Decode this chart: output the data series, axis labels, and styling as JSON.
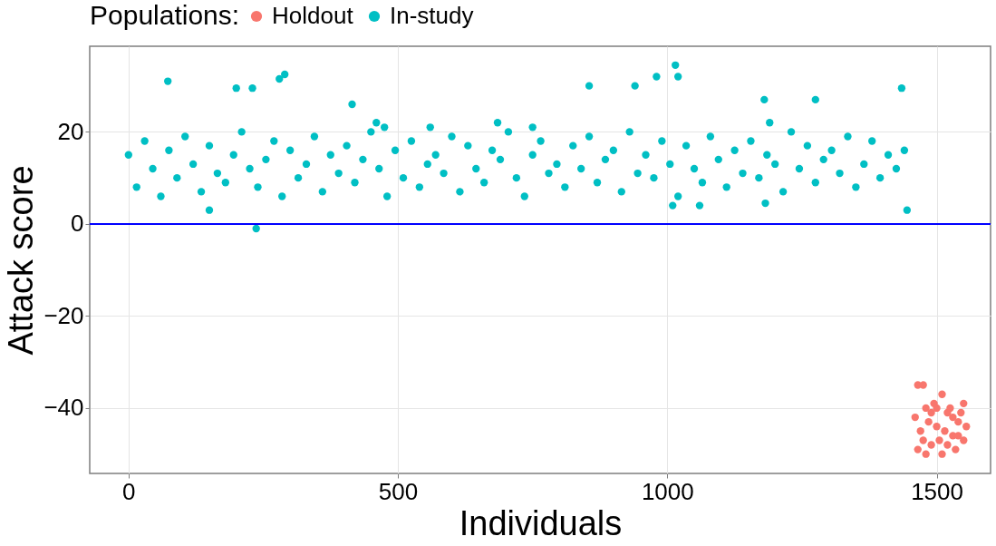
{
  "chart_data": {
    "type": "scatter",
    "xlabel": "Individuals",
    "ylabel": "Attack score",
    "legend_title": "Populations:",
    "xlim": [
      -72,
      1600
    ],
    "ylim": [
      -54.2,
      38.6
    ],
    "xticks": [
      0,
      500,
      1000,
      1500
    ],
    "yticks": [
      -40,
      -20,
      0,
      20
    ],
    "grid": true,
    "legend": "top",
    "marker": "circle",
    "ref_lines": [
      {
        "axis": "y",
        "value": 0,
        "color": "#0000ff"
      }
    ],
    "series": [
      {
        "name": "Holdout",
        "color": "#f8766d",
        "x": [
          1465,
          1475,
          1510,
          1460,
          1470,
          1480,
          1490,
          1500,
          1510,
          1520,
          1530,
          1540,
          1550,
          1465,
          1485,
          1495,
          1505,
          1515,
          1525,
          1535,
          1545,
          1555,
          1475,
          1490,
          1520,
          1540,
          1500,
          1530,
          1550,
          1480
        ],
        "values": [
          -35,
          -35,
          -37,
          -42,
          -45,
          -40,
          -48,
          -44,
          -50,
          -41,
          -46,
          -43,
          -47,
          -49,
          -43,
          -39,
          -47,
          -45,
          -40,
          -49,
          -41,
          -44,
          -47,
          -41,
          -48,
          -46,
          -40,
          -42,
          -39,
          -50
        ]
      },
      {
        "name": "In-study",
        "color": "#00bfc4",
        "x": [
          0,
          15,
          30,
          45,
          60,
          75,
          90,
          105,
          120,
          135,
          150,
          165,
          180,
          195,
          210,
          225,
          240,
          255,
          270,
          285,
          300,
          315,
          330,
          345,
          360,
          375,
          390,
          405,
          420,
          435,
          450,
          465,
          480,
          495,
          510,
          525,
          540,
          555,
          570,
          585,
          600,
          615,
          630,
          645,
          660,
          675,
          690,
          705,
          720,
          735,
          750,
          765,
          780,
          795,
          810,
          825,
          840,
          855,
          870,
          885,
          900,
          915,
          930,
          945,
          960,
          975,
          990,
          1005,
          1020,
          1035,
          1050,
          1065,
          1080,
          1095,
          1110,
          1125,
          1140,
          1155,
          1170,
          1185,
          1200,
          1215,
          1230,
          1245,
          1260,
          1275,
          1290,
          1305,
          1320,
          1335,
          1350,
          1365,
          1380,
          1395,
          1410,
          1425,
          1440,
          73,
          200,
          230,
          237,
          150,
          280,
          290,
          415,
          855,
          940,
          980,
          1015,
          1020,
          1180,
          1190,
          1275,
          1435,
          1445,
          1010,
          1060,
          1182,
          685,
          750,
          560,
          460,
          475
        ],
        "values": [
          15,
          8,
          18,
          12,
          6,
          16,
          10,
          19,
          13,
          7,
          17,
          11,
          9,
          15,
          20,
          12,
          8,
          14,
          18,
          6,
          16,
          10,
          13,
          19,
          7,
          15,
          11,
          17,
          9,
          14,
          20,
          12,
          6,
          16,
          10,
          18,
          8,
          13,
          15,
          11,
          19,
          7,
          17,
          12,
          9,
          16,
          14,
          20,
          10,
          6,
          15,
          18,
          11,
          13,
          8,
          17,
          12,
          19,
          9,
          14,
          16,
          7,
          20,
          11,
          15,
          10,
          18,
          13,
          6,
          17,
          12,
          9,
          19,
          14,
          8,
          16,
          11,
          18,
          10,
          15,
          13,
          7,
          20,
          12,
          17,
          9,
          14,
          16,
          11,
          19,
          8,
          13,
          18,
          10,
          15,
          12,
          16,
          31,
          29.5,
          29.5,
          -1,
          3,
          31.5,
          32.5,
          26,
          30,
          30,
          32,
          34.5,
          32,
          27,
          22,
          27,
          29.5,
          3,
          4,
          4,
          4.5,
          22,
          21,
          21,
          22,
          21
        ]
      }
    ]
  }
}
